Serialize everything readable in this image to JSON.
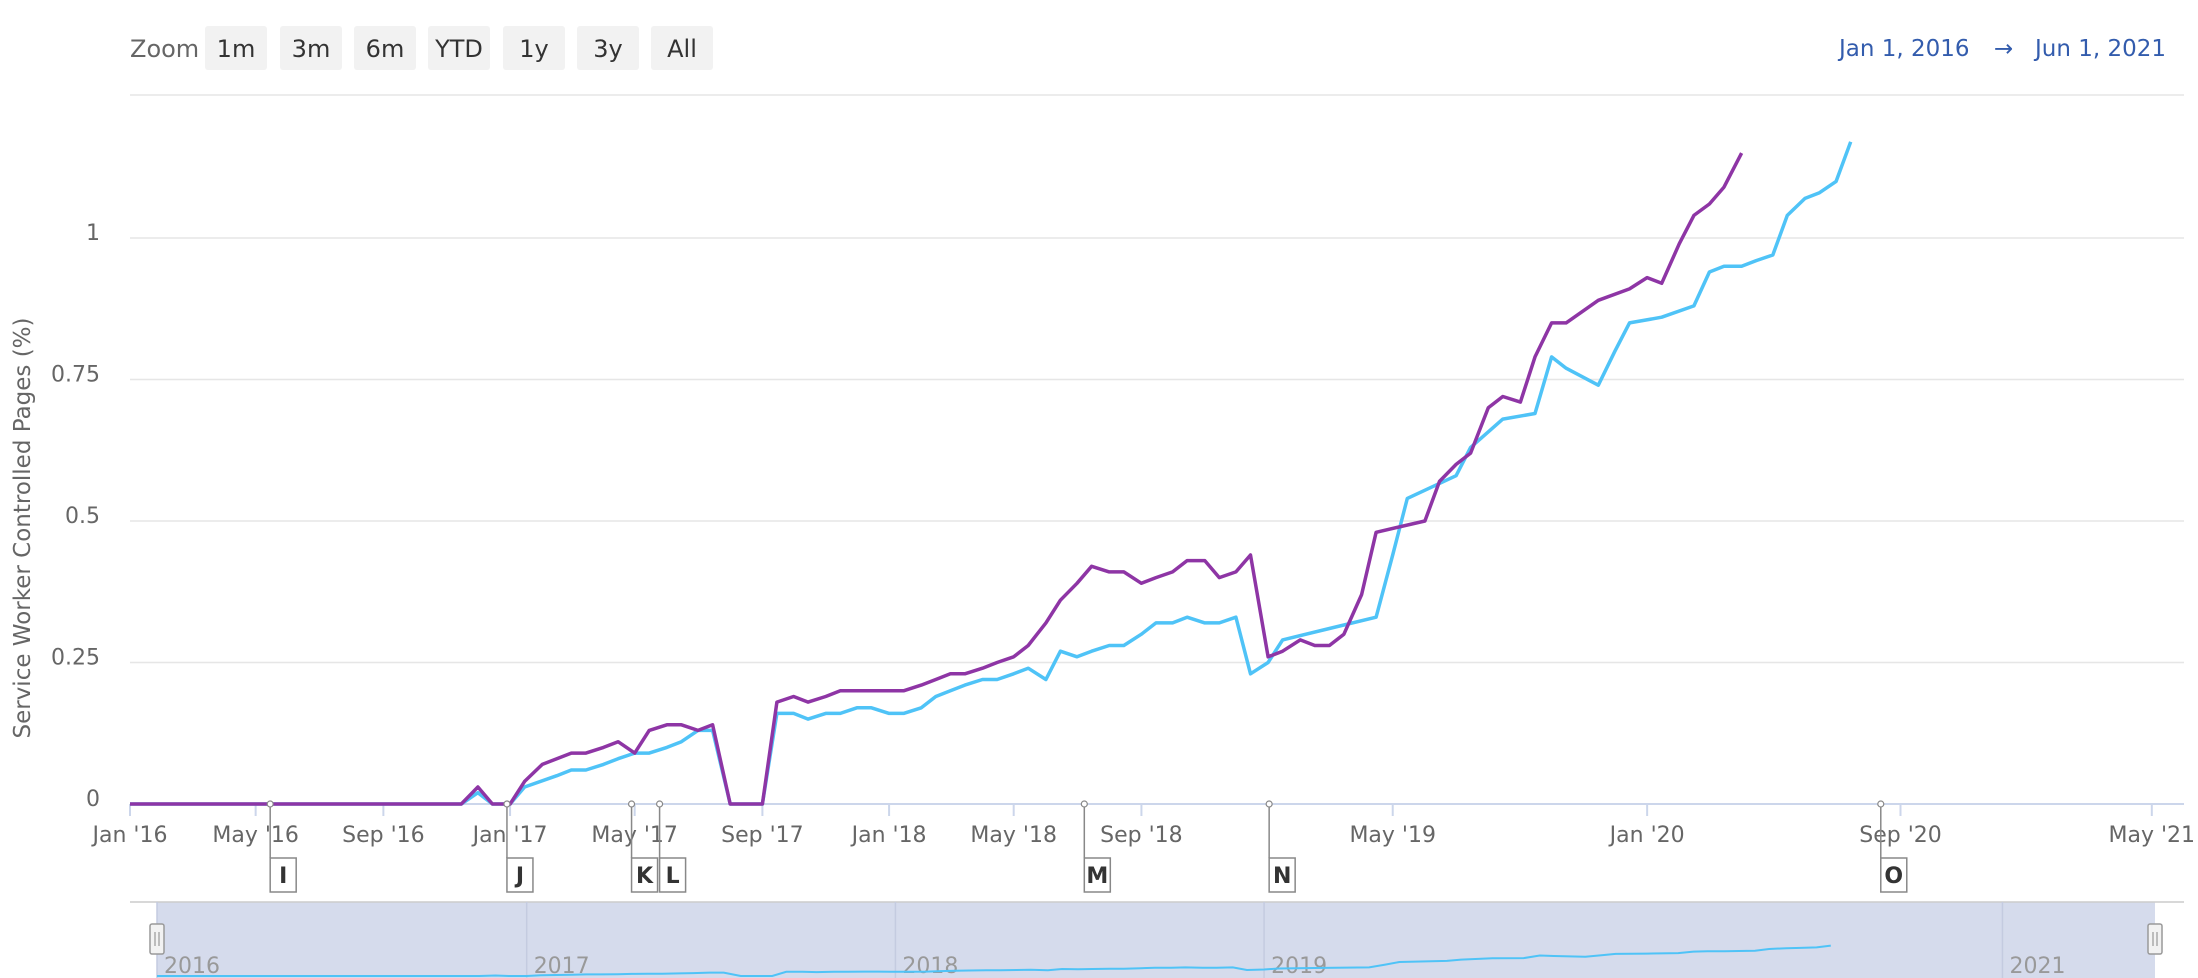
{
  "zoom": {
    "label": "Zoom",
    "buttons": [
      "1m",
      "3m",
      "6m",
      "YTD",
      "1y",
      "3y",
      "All"
    ]
  },
  "range": {
    "from": "Jan 1, 2016",
    "arrow": "→",
    "to": "Jun 1, 2021"
  },
  "colors": {
    "series_a": "#4fc3f7",
    "series_b": "#8e35a5",
    "navigator_fill": "#d5dbec",
    "axis": "#ccd6eb"
  },
  "chart_data": {
    "type": "line",
    "ylabel": "Service Worker Controlled Pages (%)",
    "xlabel": "",
    "ylim": [
      0,
      1.25
    ],
    "y_ticks": [
      "0",
      "0.25",
      "0.5",
      "0.75",
      "1"
    ],
    "x_ticks": [
      {
        "date": "2016-01-01",
        "label": "Jan '16"
      },
      {
        "date": "2016-05-01",
        "label": "May '16"
      },
      {
        "date": "2016-09-01",
        "label": "Sep '16"
      },
      {
        "date": "2017-01-01",
        "label": "Jan '17"
      },
      {
        "date": "2017-05-01",
        "label": "May '17"
      },
      {
        "date": "2017-09-01",
        "label": "Sep '17"
      },
      {
        "date": "2018-01-01",
        "label": "Jan '18"
      },
      {
        "date": "2018-05-01",
        "label": "May '18"
      },
      {
        "date": "2018-09-01",
        "label": "Sep '18"
      },
      {
        "date": "2019-05-01",
        "label": "May '19"
      },
      {
        "date": "2020-01-01",
        "label": "Jan '20"
      },
      {
        "date": "2020-09-01",
        "label": "Sep '20"
      },
      {
        "date": "2021-05-01",
        "label": "May '21"
      }
    ],
    "xlim": [
      "2016-01-01",
      "2021-06-01"
    ],
    "series": [
      {
        "color": "#4fc3f7",
        "points": [
          [
            "2016-01-01",
            0
          ],
          [
            "2016-02-01",
            0
          ],
          [
            "2016-03-01",
            0
          ],
          [
            "2016-04-01",
            0
          ],
          [
            "2016-05-01",
            0
          ],
          [
            "2016-06-01",
            0
          ],
          [
            "2016-07-01",
            0
          ],
          [
            "2016-08-01",
            0
          ],
          [
            "2016-09-01",
            0
          ],
          [
            "2016-10-01",
            0
          ],
          [
            "2016-11-01",
            0
          ],
          [
            "2016-11-15",
            0
          ],
          [
            "2016-12-01",
            0.02
          ],
          [
            "2016-12-15",
            0
          ],
          [
            "2017-01-01",
            0
          ],
          [
            "2017-01-15",
            0.03
          ],
          [
            "2017-02-15",
            0.05
          ],
          [
            "2017-03-01",
            0.06
          ],
          [
            "2017-03-15",
            0.06
          ],
          [
            "2017-04-01",
            0.07
          ],
          [
            "2017-04-15",
            0.08
          ],
          [
            "2017-05-01",
            0.09
          ],
          [
            "2017-05-15",
            0.09
          ],
          [
            "2017-06-01",
            0.1
          ],
          [
            "2017-06-15",
            0.11
          ],
          [
            "2017-07-01",
            0.13
          ],
          [
            "2017-07-15",
            0.13
          ],
          [
            "2017-08-01",
            0
          ],
          [
            "2017-08-15",
            0
          ],
          [
            "2017-09-01",
            0
          ],
          [
            "2017-09-15",
            0.16
          ],
          [
            "2017-10-01",
            0.16
          ],
          [
            "2017-10-15",
            0.15
          ],
          [
            "2017-11-01",
            0.16
          ],
          [
            "2017-11-15",
            0.16
          ],
          [
            "2017-12-01",
            0.17
          ],
          [
            "2017-12-15",
            0.17
          ],
          [
            "2018-01-01",
            0.16
          ],
          [
            "2018-01-15",
            0.16
          ],
          [
            "2018-02-01",
            0.17
          ],
          [
            "2018-02-15",
            0.19
          ],
          [
            "2018-03-01",
            0.2
          ],
          [
            "2018-03-15",
            0.21
          ],
          [
            "2018-04-01",
            0.22
          ],
          [
            "2018-04-15",
            0.22
          ],
          [
            "2018-05-01",
            0.23
          ],
          [
            "2018-05-15",
            0.24
          ],
          [
            "2018-06-01",
            0.22
          ],
          [
            "2018-06-15",
            0.27
          ],
          [
            "2018-07-01",
            0.26
          ],
          [
            "2018-07-15",
            0.27
          ],
          [
            "2018-08-01",
            0.28
          ],
          [
            "2018-08-15",
            0.28
          ],
          [
            "2018-09-01",
            0.3
          ],
          [
            "2018-09-15",
            0.32
          ],
          [
            "2018-10-01",
            0.32
          ],
          [
            "2018-10-15",
            0.33
          ],
          [
            "2018-11-01",
            0.32
          ],
          [
            "2018-11-15",
            0.32
          ],
          [
            "2018-12-01",
            0.33
          ],
          [
            "2018-12-15",
            0.23
          ],
          [
            "2019-01-01",
            0.25
          ],
          [
            "2019-01-15",
            0.29
          ],
          [
            "2019-03-01",
            0.31
          ],
          [
            "2019-04-15",
            0.33
          ],
          [
            "2019-05-01",
            0.44
          ],
          [
            "2019-05-15",
            0.54
          ],
          [
            "2019-07-01",
            0.58
          ],
          [
            "2019-07-15",
            0.63
          ],
          [
            "2019-08-15",
            0.68
          ],
          [
            "2019-09-15",
            0.69
          ],
          [
            "2019-10-01",
            0.79
          ],
          [
            "2019-10-15",
            0.77
          ],
          [
            "2019-11-15",
            0.74
          ],
          [
            "2019-12-01",
            0.8
          ],
          [
            "2019-12-15",
            0.85
          ],
          [
            "2020-01-15",
            0.86
          ],
          [
            "2020-02-15",
            0.88
          ],
          [
            "2020-03-01",
            0.94
          ],
          [
            "2020-03-15",
            0.95
          ],
          [
            "2020-04-01",
            0.95
          ],
          [
            "2020-04-15",
            0.96
          ],
          [
            "2020-05-01",
            0.97
          ],
          [
            "2020-05-15",
            1.04
          ],
          [
            "2020-06-01",
            1.07
          ],
          [
            "2020-06-15",
            1.08
          ],
          [
            "2020-07-01",
            1.1
          ],
          [
            "2020-07-15",
            1.17
          ]
        ]
      },
      {
        "color": "#8e35a5",
        "points": [
          [
            "2016-01-01",
            0
          ],
          [
            "2016-02-01",
            0
          ],
          [
            "2016-03-01",
            0
          ],
          [
            "2016-04-01",
            0
          ],
          [
            "2016-05-01",
            0
          ],
          [
            "2016-06-01",
            0
          ],
          [
            "2016-07-01",
            0
          ],
          [
            "2016-08-01",
            0
          ],
          [
            "2016-09-01",
            0
          ],
          [
            "2016-10-01",
            0
          ],
          [
            "2016-11-01",
            0
          ],
          [
            "2016-11-15",
            0
          ],
          [
            "2016-12-01",
            0.03
          ],
          [
            "2016-12-15",
            0
          ],
          [
            "2017-01-01",
            0
          ],
          [
            "2017-01-15",
            0.04
          ],
          [
            "2017-02-01",
            0.07
          ],
          [
            "2017-02-15",
            0.08
          ],
          [
            "2017-03-01",
            0.09
          ],
          [
            "2017-03-15",
            0.09
          ],
          [
            "2017-04-01",
            0.1
          ],
          [
            "2017-04-15",
            0.11
          ],
          [
            "2017-05-01",
            0.09
          ],
          [
            "2017-05-15",
            0.13
          ],
          [
            "2017-06-01",
            0.14
          ],
          [
            "2017-06-15",
            0.14
          ],
          [
            "2017-07-01",
            0.13
          ],
          [
            "2017-07-15",
            0.14
          ],
          [
            "2017-08-01",
            0
          ],
          [
            "2017-08-15",
            0
          ],
          [
            "2017-09-01",
            0
          ],
          [
            "2017-09-15",
            0.18
          ],
          [
            "2017-10-01",
            0.19
          ],
          [
            "2017-10-15",
            0.18
          ],
          [
            "2017-11-01",
            0.19
          ],
          [
            "2017-11-15",
            0.2
          ],
          [
            "2017-12-01",
            0.2
          ],
          [
            "2017-12-15",
            0.2
          ],
          [
            "2018-01-01",
            0.2
          ],
          [
            "2018-01-15",
            0.2
          ],
          [
            "2018-02-01",
            0.21
          ],
          [
            "2018-02-15",
            0.22
          ],
          [
            "2018-03-01",
            0.23
          ],
          [
            "2018-03-15",
            0.23
          ],
          [
            "2018-04-01",
            0.24
          ],
          [
            "2018-04-15",
            0.25
          ],
          [
            "2018-05-01",
            0.26
          ],
          [
            "2018-05-15",
            0.28
          ],
          [
            "2018-06-01",
            0.32
          ],
          [
            "2018-06-15",
            0.36
          ],
          [
            "2018-07-01",
            0.39
          ],
          [
            "2018-07-15",
            0.42
          ],
          [
            "2018-08-01",
            0.41
          ],
          [
            "2018-08-15",
            0.41
          ],
          [
            "2018-09-01",
            0.39
          ],
          [
            "2018-09-15",
            0.4
          ],
          [
            "2018-10-01",
            0.41
          ],
          [
            "2018-10-15",
            0.43
          ],
          [
            "2018-11-01",
            0.43
          ],
          [
            "2018-11-15",
            0.4
          ],
          [
            "2018-12-01",
            0.41
          ],
          [
            "2018-12-15",
            0.44
          ],
          [
            "2019-01-01",
            0.26
          ],
          [
            "2019-01-15",
            0.27
          ],
          [
            "2019-02-01",
            0.29
          ],
          [
            "2019-02-15",
            0.28
          ],
          [
            "2019-03-01",
            0.28
          ],
          [
            "2019-03-15",
            0.3
          ],
          [
            "2019-04-01",
            0.37
          ],
          [
            "2019-04-15",
            0.48
          ],
          [
            "2019-06-01",
            0.5
          ],
          [
            "2019-06-15",
            0.57
          ],
          [
            "2019-07-01",
            0.6
          ],
          [
            "2019-07-15",
            0.62
          ],
          [
            "2019-08-01",
            0.7
          ],
          [
            "2019-08-15",
            0.72
          ],
          [
            "2019-09-01",
            0.71
          ],
          [
            "2019-09-15",
            0.79
          ],
          [
            "2019-10-01",
            0.85
          ],
          [
            "2019-10-15",
            0.85
          ],
          [
            "2019-11-15",
            0.89
          ],
          [
            "2019-12-15",
            0.91
          ],
          [
            "2020-01-01",
            0.93
          ],
          [
            "2020-01-15",
            0.92
          ],
          [
            "2020-02-01",
            0.99
          ],
          [
            "2020-02-15",
            1.04
          ],
          [
            "2020-03-01",
            1.06
          ],
          [
            "2020-03-15",
            1.09
          ],
          [
            "2020-04-01",
            1.15
          ]
        ]
      }
    ],
    "flags": [
      {
        "date": "2016-05-15",
        "label": "I"
      },
      {
        "date": "2016-12-29",
        "label": "J"
      },
      {
        "date": "2017-04-28",
        "label": "K"
      },
      {
        "date": "2017-05-25",
        "label": "L"
      },
      {
        "date": "2018-07-08",
        "label": "M"
      },
      {
        "date": "2019-01-02",
        "label": "N"
      },
      {
        "date": "2020-08-13",
        "label": "O"
      }
    ],
    "navigator": {
      "labels": [
        {
          "date": "2016-01-01",
          "label": "2016"
        },
        {
          "date": "2017-01-01",
          "label": "2017"
        },
        {
          "date": "2018-01-01",
          "label": "2018"
        },
        {
          "date": "2019-01-01",
          "label": "2019"
        },
        {
          "date": "2021-01-01",
          "label": "2021"
        }
      ]
    }
  }
}
